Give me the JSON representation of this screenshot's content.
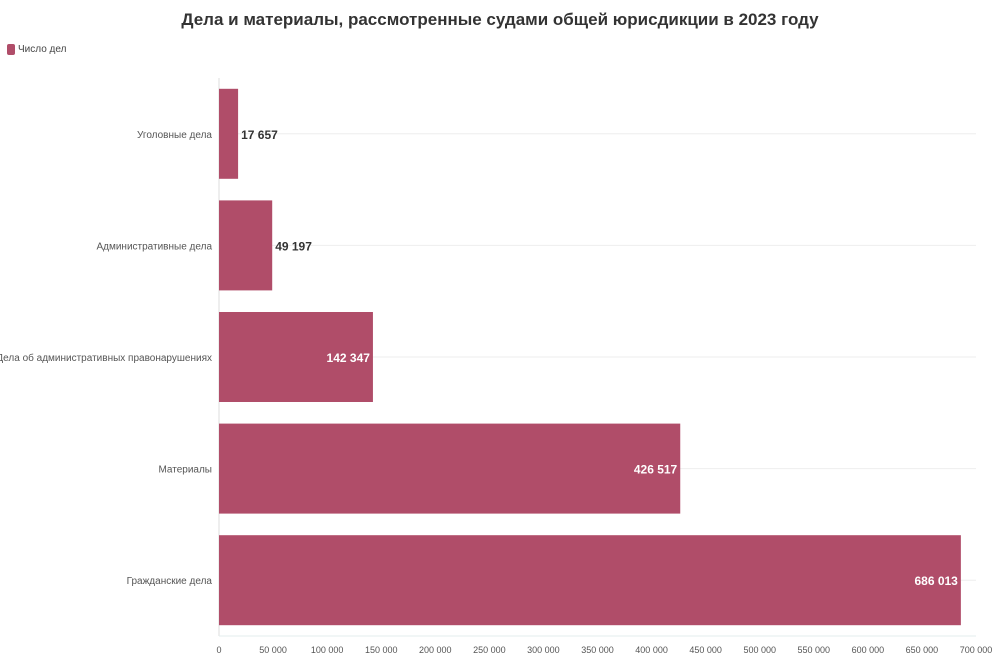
{
  "chart_data": {
    "type": "bar",
    "orientation": "horizontal",
    "title": "Дела и материалы, рассмотренные судами общей юрисдикции в 2023 году",
    "categories": [
      "Уголовные дела",
      "Административные дела",
      "Дела об административных правонарушениях",
      "Материалы",
      "Гражданские дела"
    ],
    "series": [
      {
        "name": "Число дел",
        "values": [
          17657,
          49197,
          142347,
          426517,
          686013
        ],
        "labels": [
          "17 657",
          "49 197",
          "142 347",
          "426 517",
          "686 013"
        ],
        "color": "#b04d69"
      }
    ],
    "xlim": [
      0,
      700000
    ],
    "xticks": [
      0,
      50000,
      100000,
      150000,
      200000,
      250000,
      300000,
      350000,
      400000,
      450000,
      500000,
      550000,
      600000,
      650000,
      700000
    ],
    "xtick_labels": [
      "0",
      "50 000",
      "100 000",
      "150 000",
      "200 000",
      "250 000",
      "300 000",
      "350 000",
      "400 000",
      "450 000",
      "500 000",
      "550 000",
      "600 000",
      "650 000",
      "700 000"
    ],
    "grid": true,
    "legend": "top-left"
  }
}
